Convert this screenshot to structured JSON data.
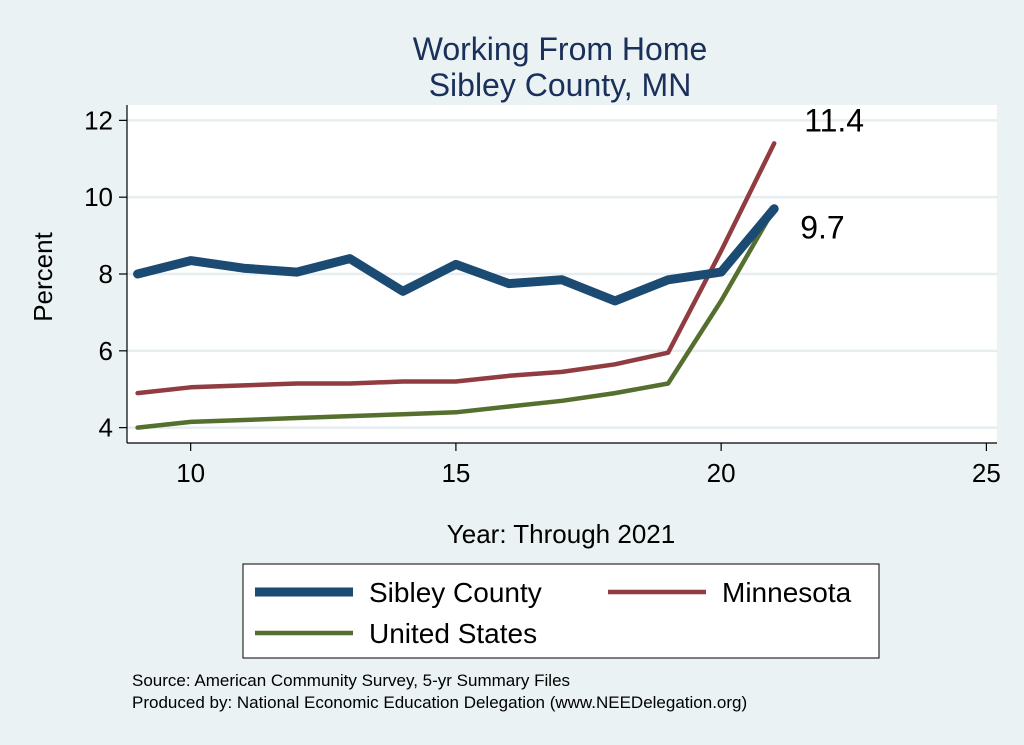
{
  "chart_data": {
    "type": "line",
    "title": [
      "Working From Home",
      "Sibley County, MN"
    ],
    "xlabel": "Year: Through 2021",
    "ylabel": "Percent",
    "xlim": [
      8.8,
      25.2
    ],
    "ylim": [
      3.6,
      12.4
    ],
    "xticks": [
      10,
      15,
      20,
      25
    ],
    "yticks": [
      4,
      6,
      8,
      10,
      12
    ],
    "grid": true,
    "legend_position": "bottom",
    "series": [
      {
        "name": "Sibley County",
        "color": "#1b4a72",
        "x": [
          9,
          10,
          11,
          12,
          13,
          14,
          15,
          16,
          17,
          18,
          19,
          20,
          21
        ],
        "y": [
          8.0,
          8.35,
          8.15,
          8.05,
          8.4,
          7.55,
          8.25,
          7.75,
          7.85,
          7.3,
          7.85,
          8.05,
          9.7
        ]
      },
      {
        "name": "Minnesota",
        "color": "#903c41",
        "x": [
          9,
          10,
          11,
          12,
          13,
          14,
          15,
          16,
          17,
          18,
          19,
          20,
          21
        ],
        "y": [
          4.9,
          5.05,
          5.1,
          5.15,
          5.15,
          5.2,
          5.2,
          5.35,
          5.45,
          5.65,
          5.95,
          8.6,
          11.4
        ]
      },
      {
        "name": "United States",
        "color": "#55702e",
        "x": [
          9,
          10,
          11,
          12,
          13,
          14,
          15,
          16,
          17,
          18,
          19,
          20,
          21
        ],
        "y": [
          4.0,
          4.15,
          4.2,
          4.25,
          4.3,
          4.35,
          4.4,
          4.55,
          4.7,
          4.9,
          5.15,
          7.3,
          9.7
        ]
      }
    ],
    "end_labels": [
      {
        "text": "11.4",
        "x": 21,
        "y": 11.4
      },
      {
        "text": "9.7",
        "x": 21,
        "y": 9.7
      }
    ],
    "notes": [
      "Source: American Community Survey, 5-yr Summary Files",
      "Produced by: National Economic Education Delegation (www.NEEDelegation.org)"
    ]
  }
}
